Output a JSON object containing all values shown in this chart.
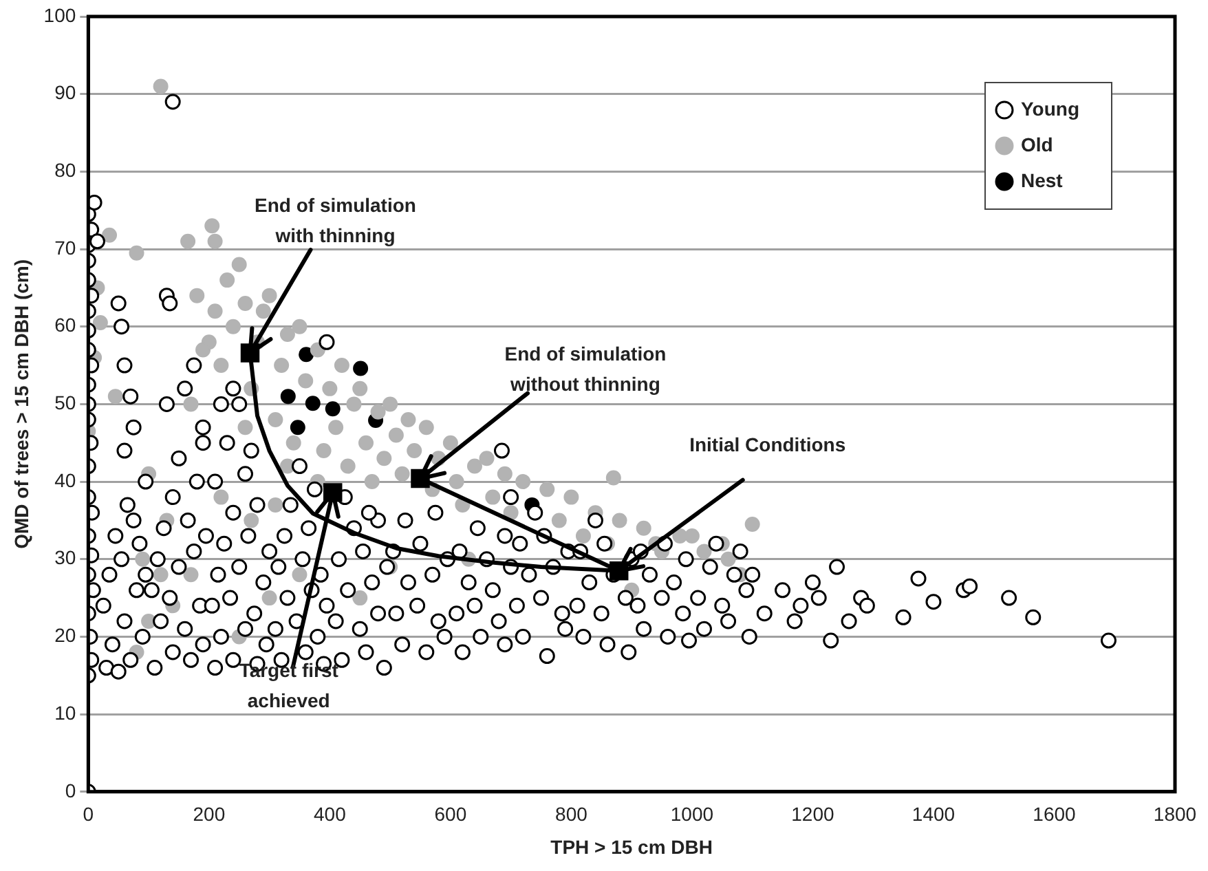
{
  "chart_data": {
    "type": "scatter",
    "xlabel": "TPH > 15 cm DBH",
    "ylabel": "QMD of trees > 15 cm DBH (cm)",
    "xlim": [
      0,
      1800
    ],
    "xticks": [
      0,
      200,
      400,
      600,
      800,
      1000,
      1200,
      1400,
      1600,
      1800
    ],
    "ylim": [
      0,
      100
    ],
    "yticks": [
      0,
      10,
      20,
      30,
      40,
      50,
      60,
      70,
      80,
      90,
      100
    ],
    "grid": "y",
    "legend": "top right",
    "marker": "circle",
    "series": [
      {
        "name": "Young",
        "color": "#ffffff",
        "x": [
          0,
          0,
          5,
          3,
          0,
          8,
          0,
          5,
          0,
          6,
          0,
          0,
          4,
          0,
          0,
          0,
          5,
          0,
          0,
          0,
          5,
          0,
          0,
          0,
          5,
          0,
          10,
          15,
          30,
          50,
          40,
          70,
          90,
          25,
          60,
          80,
          35,
          55,
          95,
          45,
          75,
          65,
          85,
          50,
          55,
          60,
          70,
          75,
          60,
          95,
          110,
          140,
          170,
          120,
          160,
          190,
          105,
          135,
          185,
          115,
          150,
          175,
          125,
          165,
          195,
          140,
          180,
          150,
          190,
          130,
          160,
          175,
          130,
          135,
          140,
          190,
          210,
          240,
          280,
          220,
          260,
          295,
          205,
          235,
          275,
          215,
          250,
          290,
          225,
          265,
          300,
          240,
          280,
          210,
          260,
          230,
          270,
          250,
          220,
          240,
          320,
          360,
          390,
          310,
          345,
          380,
          330,
          370,
          395,
          315,
          355,
          385,
          325,
          365,
          335,
          375,
          350,
          395,
          420,
          460,
          490,
          410,
          450,
          480,
          430,
          470,
          415,
          455,
          495,
          440,
          480,
          425,
          465,
          520,
          560,
          590,
          510,
          545,
          580,
          530,
          570,
          505,
          550,
          595,
          525,
          575,
          620,
          650,
          690,
          610,
          640,
          680,
          630,
          670,
          615,
          660,
          700,
          645,
          690,
          685,
          700,
          720,
          760,
          790,
          710,
          750,
          785,
          730,
          770,
          715,
          755,
          795,
          740,
          820,
          860,
          895,
          810,
          850,
          890,
          830,
          870,
          815,
          855,
          900,
          840,
          920,
          960,
          995,
          910,
          950,
          985,
          930,
          970,
          915,
          955,
          990,
          1020,
          1060,
          1095,
          1010,
          1050,
          1090,
          1030,
          1070,
          1040,
          1080,
          1100,
          1120,
          1150,
          1170,
          1200,
          1230,
          1240,
          1260,
          1280,
          1290,
          1350,
          1375,
          1400,
          1450,
          1460,
          1525,
          1565,
          1690,
          1180,
          1210
        ],
        "values": [
          0,
          15,
          17,
          20,
          23,
          26,
          28,
          30.5,
          33,
          36,
          38,
          42,
          45,
          48,
          50,
          52.5,
          55,
          57,
          59.5,
          62,
          64,
          66,
          68.5,
          70.5,
          72.5,
          74.5,
          76,
          71,
          16,
          15.5,
          19,
          17,
          20,
          24,
          22,
          26,
          28,
          30,
          28,
          33,
          35,
          37,
          32,
          63,
          60,
          55,
          51,
          47,
          44,
          40,
          16,
          18,
          17,
          22,
          21,
          19,
          26,
          25,
          24,
          30,
          29,
          31,
          34,
          35,
          33,
          38,
          40,
          43,
          45,
          50,
          52,
          55,
          64,
          63,
          89,
          47,
          16,
          17,
          16.5,
          20,
          21,
          19,
          24,
          25,
          23,
          28,
          29,
          27,
          32,
          33,
          31,
          36,
          37,
          40,
          41,
          45,
          44,
          50,
          50,
          52,
          17,
          18,
          16.5,
          21,
          22,
          20,
          25,
          26,
          24,
          29,
          30,
          28,
          33,
          34,
          37,
          39,
          42,
          58,
          17,
          18,
          16,
          22,
          21,
          23,
          26,
          27,
          30,
          31,
          29,
          34,
          35,
          38,
          36,
          19,
          18,
          20,
          23,
          24,
          22,
          27,
          28,
          31,
          32,
          30,
          35,
          36,
          18,
          20,
          19,
          23,
          24,
          22,
          27,
          26,
          31,
          30,
          29,
          34,
          33,
          44,
          38,
          20,
          17.5,
          21,
          24,
          25,
          23,
          28,
          29,
          32,
          33,
          31,
          36,
          20,
          19,
          18,
          24,
          23,
          25,
          27,
          28,
          31,
          32,
          30,
          35,
          21,
          20,
          19.5,
          24,
          25,
          23,
          28,
          27,
          31,
          32,
          30,
          21,
          22,
          20,
          25,
          24,
          26,
          29,
          28,
          32,
          31,
          28,
          23,
          26,
          22,
          27,
          19.5,
          29,
          22,
          25,
          24,
          22.5,
          27.5,
          24.5,
          26,
          26.5,
          25,
          22.5,
          19.5,
          24,
          25
        ]
      },
      {
        "name": "Old",
        "color": "#b3b3b3",
        "x": [
          120,
          205,
          165,
          35,
          80,
          20,
          0,
          45,
          10,
          15,
          100,
          80,
          90,
          120,
          170,
          250,
          300,
          270,
          350,
          450,
          500,
          630,
          900,
          870,
          1100,
          1050,
          1000,
          950,
          1080,
          200,
          210,
          220,
          230,
          240,
          250,
          260,
          270,
          280,
          290,
          300,
          310,
          320,
          330,
          340,
          350,
          360,
          380,
          390,
          400,
          410,
          420,
          430,
          440,
          450,
          460,
          470,
          480,
          490,
          500,
          510,
          520,
          530,
          540,
          560,
          570,
          580,
          600,
          610,
          620,
          640,
          660,
          670,
          690,
          700,
          720,
          760,
          780,
          800,
          820,
          840,
          860,
          880,
          920,
          940,
          980,
          1020,
          1060,
          210,
          180,
          190,
          170,
          260,
          330,
          380,
          100,
          130,
          140,
          220,
          310
        ],
        "values": [
          91,
          73,
          71,
          71.8,
          69.5,
          60.5,
          46.5,
          51,
          56,
          65,
          22,
          18,
          30,
          28,
          28,
          20,
          25,
          35,
          28,
          25,
          29,
          30,
          26,
          40.5,
          34.5,
          32,
          33,
          31,
          28,
          58,
          62,
          55,
          66,
          60,
          68,
          63,
          52,
          58,
          62,
          64,
          48,
          55,
          59,
          45,
          60,
          53,
          57,
          44,
          52,
          47,
          55,
          42,
          50,
          52,
          45,
          40,
          49,
          43,
          50,
          46,
          41,
          48,
          44,
          47,
          39,
          43,
          45,
          40,
          37,
          42,
          43,
          38,
          41,
          36,
          40,
          39,
          35,
          38,
          33,
          36,
          32,
          35,
          34,
          32,
          33,
          31,
          30,
          71,
          64,
          57,
          50,
          47,
          42,
          40,
          41,
          35,
          24,
          38,
          37
        ]
      },
      {
        "name": "Nest",
        "color": "#000000",
        "x": [
          361,
          451,
          331,
          372,
          405,
          347,
          476,
          735
        ],
        "values": [
          56.4,
          54.6,
          51,
          50.1,
          49.4,
          47,
          47.9,
          37
        ]
      },
      {
        "type": "line",
        "color": "#000000",
        "marker": "none",
        "x": [
          879,
          750,
          666,
          580,
          511,
          440,
          372,
          330,
          300,
          280,
          268
        ],
        "values": [
          28.5,
          29,
          29.6,
          30.4,
          31.4,
          33.4,
          35.9,
          39.5,
          44,
          48.5,
          56.6
        ]
      },
      {
        "type": "line",
        "color": "#000000",
        "marker": "none",
        "x": [
          879,
          550
        ],
        "values": [
          28.5,
          40.4
        ]
      },
      {
        "color": "#000000",
        "marker": "square",
        "x": [
          268,
          405,
          550,
          879
        ],
        "values": [
          56.6,
          38.6,
          40.4,
          28.5
        ]
      }
    ],
    "annotations": [
      {
        "text": "End of simulation\nwith thinning",
        "x": 268,
        "y": 56.6
      },
      {
        "text": "End of simulation\nwithout thinning",
        "x": 550,
        "y": 40.4
      },
      {
        "text": "Initial Conditions",
        "x": 879,
        "y": 28.5
      },
      {
        "text": "Target first\nachieved",
        "x": 405,
        "y": 38.6
      }
    ]
  }
}
